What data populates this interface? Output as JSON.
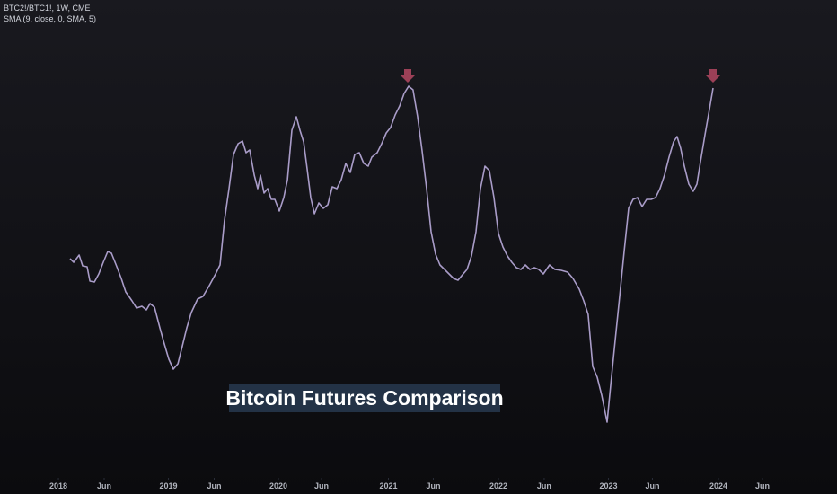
{
  "chart_data": {
    "type": "line",
    "title": "Bitcoin Futures Comparison",
    "header": [
      "BTC2!/BTC1!, 1W, CME",
      "SMA (9, close, 0, SMA, 5)"
    ],
    "color": "#a99cc8",
    "xlim": [
      2017.469,
      2025.078
    ],
    "ylim": [
      20,
      550
    ],
    "xticks": [
      2018,
      {
        "value": 2018.416,
        "label": "Jun"
      },
      2019,
      {
        "value": 2019.416,
        "label": "Jun"
      },
      2020,
      {
        "value": 2020.392,
        "label": "Jun"
      },
      2021,
      {
        "value": 2021.408,
        "label": "Jun"
      },
      2022,
      {
        "value": 2022.416,
        "label": "Jun"
      },
      2023,
      {
        "value": 2023.4,
        "label": "Jun"
      },
      2024,
      {
        "value": 2024.4,
        "label": "Jun"
      }
    ],
    "x": [
      2018.106,
      2018.139,
      2018.188,
      2018.22,
      2018.261,
      2018.286,
      2018.327,
      2018.367,
      2018.408,
      2018.449,
      2018.482,
      2018.531,
      2018.571,
      2018.612,
      2018.669,
      2018.71,
      2018.759,
      2018.8,
      2018.833,
      2018.873,
      2018.922,
      2018.963,
      2019.004,
      2019.045,
      2019.086,
      2019.127,
      2019.167,
      2019.208,
      2019.265,
      2019.314,
      2019.371,
      2019.429,
      2019.469,
      2019.51,
      2019.551,
      2019.592,
      2019.633,
      2019.673,
      2019.706,
      2019.739,
      2019.78,
      2019.812,
      2019.837,
      2019.869,
      2019.902,
      2019.935,
      2019.967,
      2020.008,
      2020.049,
      2020.082,
      2020.122,
      2020.163,
      2020.196,
      2020.229,
      2020.261,
      2020.294,
      2020.327,
      2020.367,
      2020.408,
      2020.449,
      2020.49,
      2020.531,
      2020.571,
      2020.612,
      2020.653,
      2020.694,
      2020.735,
      2020.776,
      2020.816,
      2020.849,
      2020.898,
      2020.939,
      2020.98,
      2021.02,
      2021.061,
      2021.102,
      2021.143,
      2021.184,
      2021.224,
      2021.265,
      2021.306,
      2021.347,
      2021.388,
      2021.429,
      2021.469,
      2021.51,
      2021.551,
      2021.592,
      2021.633,
      2021.673,
      2021.714,
      2021.755,
      2021.796,
      2021.837,
      2021.878,
      2021.918,
      2021.959,
      2022.0,
      2022.041,
      2022.082,
      2022.122,
      2022.163,
      2022.204,
      2022.245,
      2022.286,
      2022.327,
      2022.367,
      2022.408,
      2022.465,
      2022.514,
      2022.571,
      2022.629,
      2022.678,
      2022.735,
      2022.776,
      2022.816,
      2022.857,
      2022.898,
      2022.939,
      2022.988,
      2023.02,
      2023.061,
      2023.102,
      2023.143,
      2023.184,
      2023.224,
      2023.265,
      2023.306,
      2023.347,
      2023.388,
      2023.429,
      2023.469,
      2023.51,
      2023.551,
      2023.592,
      2023.624,
      2023.657,
      2023.69,
      2023.731,
      2023.771,
      2023.804,
      2023.837,
      2023.878,
      2023.918,
      2023.951
    ],
    "values": [
      262,
      258,
      266,
      254,
      253,
      237,
      236,
      245,
      258,
      270,
      268,
      253,
      240,
      225,
      215,
      207,
      209,
      205,
      212,
      208,
      185,
      167,
      150,
      139,
      145,
      165,
      185,
      202,
      217,
      220,
      232,
      245,
      255,
      305,
      340,
      378,
      390,
      393,
      380,
      383,
      355,
      340,
      355,
      335,
      340,
      328,
      328,
      315,
      330,
      350,
      405,
      420,
      405,
      392,
      362,
      330,
      312,
      324,
      318,
      322,
      342,
      340,
      350,
      368,
      358,
      378,
      380,
      368,
      365,
      375,
      380,
      390,
      402,
      408,
      422,
      432,
      446,
      454,
      450,
      420,
      382,
      340,
      292,
      267,
      255,
      250,
      245,
      240,
      238,
      244,
      250,
      265,
      292,
      340,
      365,
      360,
      330,
      290,
      275,
      265,
      258,
      252,
      250,
      255,
      250,
      252,
      250,
      245,
      255,
      250,
      249,
      247,
      240,
      228,
      215,
      200,
      142,
      130,
      110,
      80,
      120,
      170,
      220,
      270,
      318,
      328,
      330,
      320,
      328,
      328,
      330,
      340,
      355,
      375,
      392,
      398,
      385,
      365,
      345,
      337,
      345,
      370,
      400,
      428,
      452
    ]
  }
}
